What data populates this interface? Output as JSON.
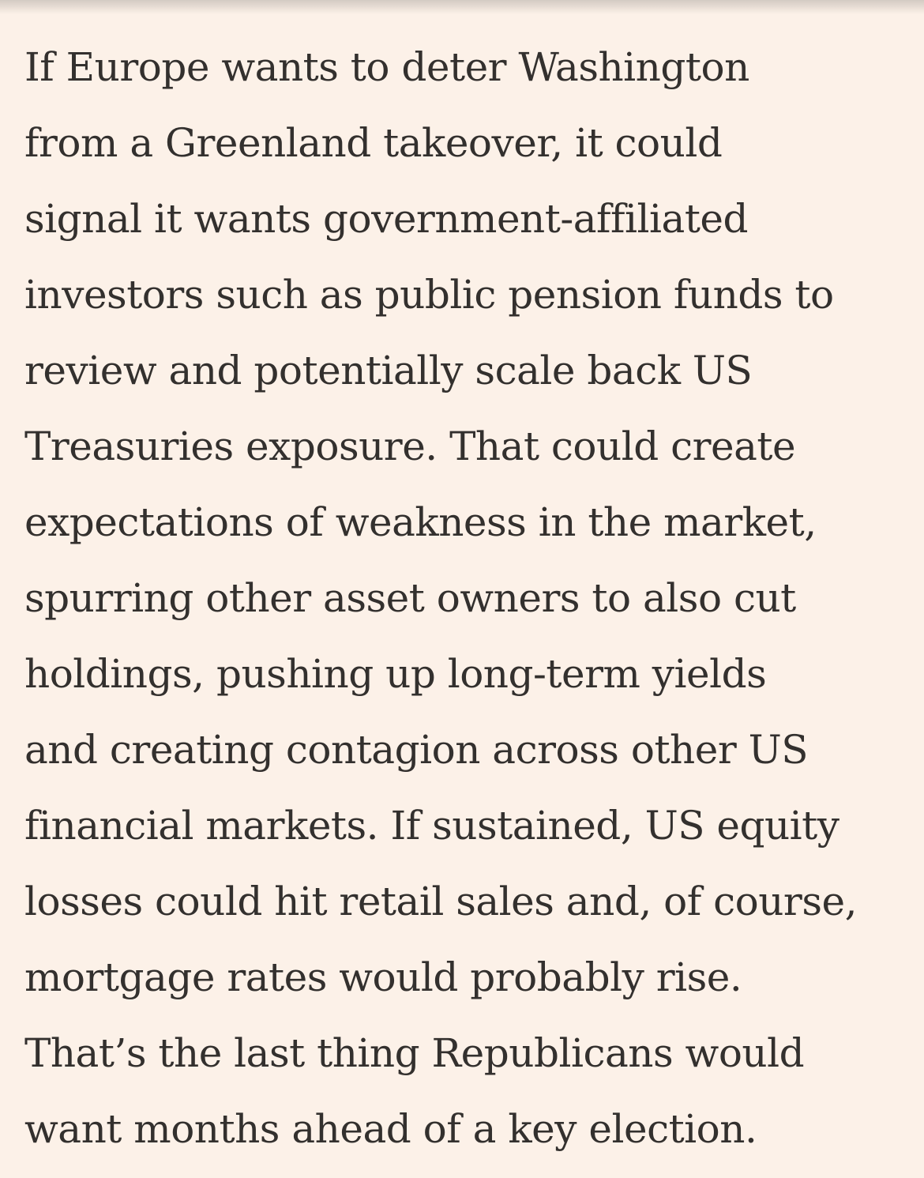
{
  "article": {
    "lines": [
      "If Europe wants to deter Washington",
      "from a Greenland takeover, it could",
      "signal it wants government-affiliated",
      "investors such as public pension funds to",
      "review and potentially scale back US",
      "Treasuries exposure. That could create",
      "expectations of weakness in the market,",
      "spurring other asset owners to also cut",
      "holdings, pushing up long-term yields",
      "and creating contagion across other US",
      "financial markets. If sustained, US equity",
      "losses could hit retail sales and, of course,",
      "mortgage rates would probably rise.",
      "That’s the last thing Republicans would",
      "want months ahead of a key election."
    ]
  }
}
